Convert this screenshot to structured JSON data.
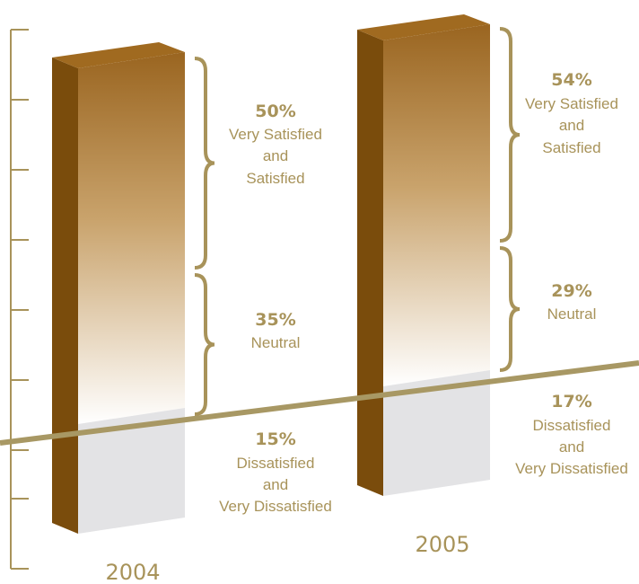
{
  "chart_data": {
    "type": "bar",
    "stacked": true,
    "categories": [
      "2004",
      "2005"
    ],
    "series": [
      {
        "key": "dissatisfied",
        "values": [
          15,
          17
        ],
        "label_lines": [
          "Dissatisfied",
          "and",
          "Very Dissatisfied"
        ],
        "color": "#e3e3e5"
      },
      {
        "key": "neutral",
        "values": [
          35,
          29
        ],
        "label_lines": [
          "Neutral"
        ],
        "color": "#c9a36c"
      },
      {
        "key": "satisfied",
        "values": [
          50,
          54
        ],
        "label_lines": [
          "Very Satisfied",
          "and",
          "Satisfied"
        ],
        "color": "#9a6520"
      }
    ],
    "value_suffix": "%",
    "ylim": [
      0,
      100
    ],
    "grid": false,
    "legend": "none",
    "colors": {
      "side": "#7a4c0c",
      "top": "#a06a20",
      "text": "#a8935a",
      "axis": "#a8935a",
      "baseline": "#a89864"
    }
  }
}
